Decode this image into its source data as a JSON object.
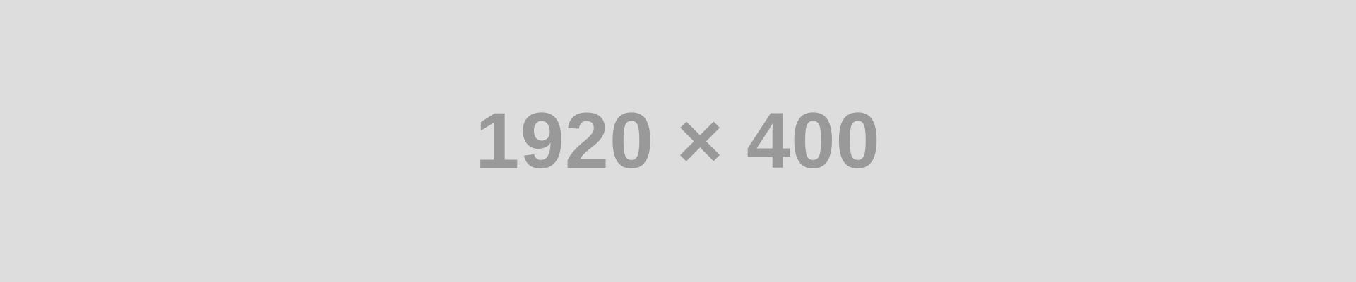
{
  "placeholder": {
    "label": "1920 × 400",
    "background_color": "#dddddd",
    "text_color": "#999999"
  }
}
